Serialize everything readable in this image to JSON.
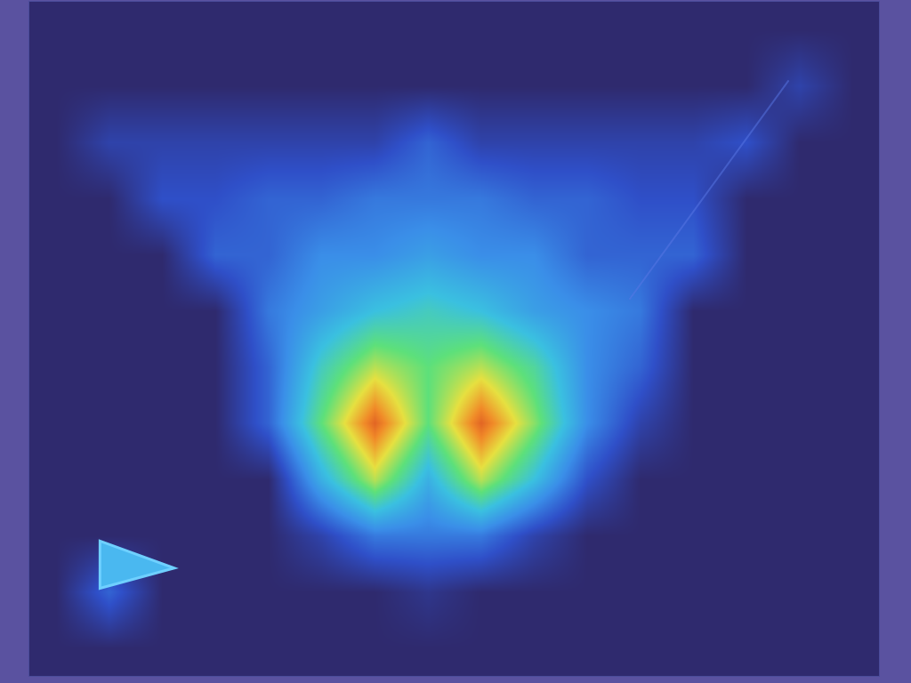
{
  "chart_data": {
    "type": "heatmap",
    "tick_labels": false,
    "grid": false,
    "xlim": [
      -0.5,
      15.5
    ],
    "ylim": [
      11.5,
      -0.5
    ],
    "zlim": [
      0,
      10
    ],
    "z": [
      [
        0,
        0,
        0,
        0,
        0,
        0,
        0,
        0,
        0,
        0,
        0,
        0,
        0,
        0,
        0,
        0
      ],
      [
        0,
        0,
        0,
        0,
        0,
        0,
        0,
        0,
        0,
        0,
        0,
        0,
        0,
        0,
        1,
        0
      ],
      [
        0,
        1,
        1,
        1,
        1,
        1,
        1,
        2,
        1,
        1,
        1,
        1,
        1,
        1.5,
        0,
        0
      ],
      [
        0,
        0,
        1.5,
        1.5,
        2,
        2,
        2.5,
        2.5,
        2.5,
        2,
        2,
        1.5,
        1.5,
        0,
        0,
        0
      ],
      [
        0,
        0,
        0,
        2,
        2,
        3,
        3,
        3.5,
        3,
        3,
        2,
        2,
        2,
        0,
        0,
        0
      ],
      [
        0,
        0,
        0,
        0,
        2.5,
        3.5,
        4.5,
        5,
        4.5,
        3.5,
        3,
        2.5,
        0,
        0,
        0,
        0
      ],
      [
        0,
        0,
        0,
        0,
        2,
        5,
        7,
        6,
        7,
        5.5,
        3,
        2,
        0,
        0,
        0,
        0
      ],
      [
        0,
        0,
        0,
        0,
        2,
        6,
        9.5,
        6,
        9.5,
        6.5,
        3,
        1,
        0,
        0,
        0,
        0
      ],
      [
        0,
        0,
        0,
        0,
        0,
        4,
        7,
        4,
        7,
        4.5,
        1.5,
        0,
        0,
        0,
        0,
        0
      ],
      [
        0,
        0,
        0,
        0,
        0,
        1,
        2.5,
        2.5,
        2.5,
        1,
        0,
        0,
        0,
        0,
        0,
        0
      ],
      [
        0,
        2,
        0,
        0,
        0,
        0,
        0,
        0.5,
        0,
        0,
        0,
        0,
        0,
        0,
        0,
        0
      ],
      [
        0,
        0,
        0,
        0,
        0,
        0,
        0,
        0,
        0,
        0,
        0,
        0,
        0,
        0,
        0,
        0
      ]
    ]
  }
}
